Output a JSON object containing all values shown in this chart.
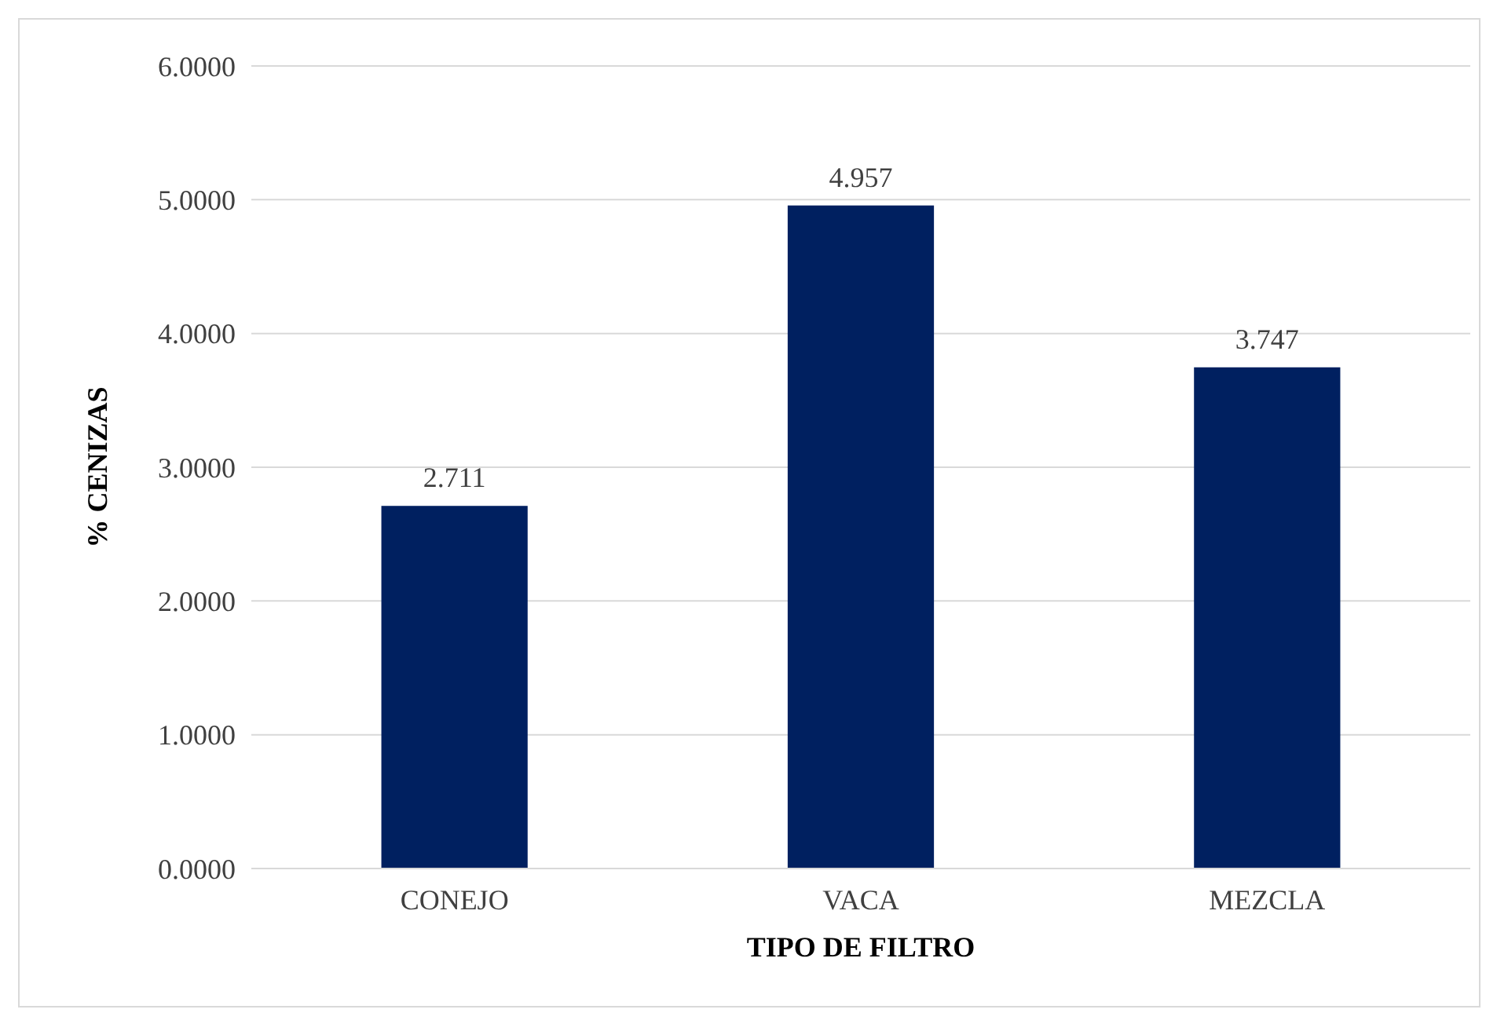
{
  "chart_data": {
    "type": "bar",
    "xlabel": "TIPO DE FILTRO",
    "ylabel": "% CENIZAS",
    "categories": [
      "CONEJO",
      "VACA",
      "MEZCLA"
    ],
    "values": [
      2.711,
      4.957,
      3.747
    ],
    "color": "#002060",
    "data_labels": true,
    "ylim": [
      0,
      6
    ],
    "yticks": [
      {
        "value": 0,
        "label": "0.0000"
      },
      {
        "value": 1,
        "label": "1.0000"
      },
      {
        "value": 2,
        "label": "2.0000"
      },
      {
        "value": 3,
        "label": "3.0000"
      },
      {
        "value": 4,
        "label": "4.0000"
      },
      {
        "value": 5,
        "label": "5.0000"
      },
      {
        "value": 6,
        "label": "6.0000"
      }
    ],
    "grid": "y"
  }
}
